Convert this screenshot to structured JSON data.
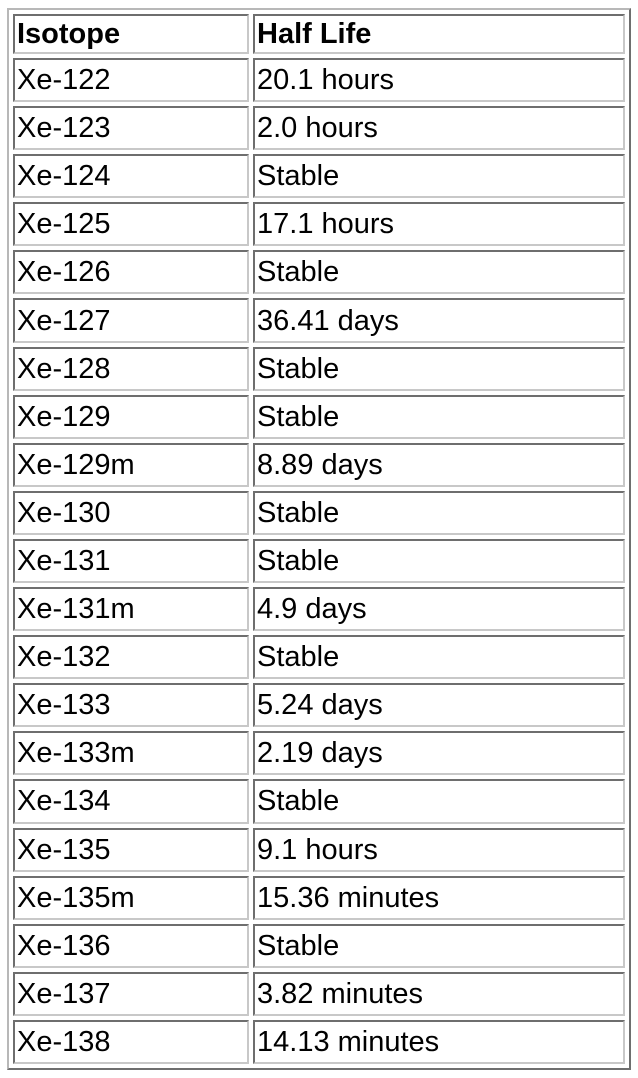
{
  "table": {
    "headers": [
      "Isotope",
      "Half Life"
    ],
    "rows": [
      [
        "Xe-122",
        "20.1 hours"
      ],
      [
        "Xe-123",
        "2.0 hours"
      ],
      [
        "Xe-124",
        "Stable"
      ],
      [
        "Xe-125",
        "17.1 hours"
      ],
      [
        "Xe-126",
        "Stable"
      ],
      [
        "Xe-127",
        "36.41 days"
      ],
      [
        "Xe-128",
        "Stable"
      ],
      [
        "Xe-129",
        "Stable"
      ],
      [
        "Xe-129m",
        "8.89 days"
      ],
      [
        "Xe-130",
        "Stable"
      ],
      [
        "Xe-131",
        "Stable"
      ],
      [
        "Xe-131m",
        "4.9 days"
      ],
      [
        "Xe-132",
        "Stable"
      ],
      [
        "Xe-133",
        "5.24 days"
      ],
      [
        "Xe-133m",
        "2.19 days"
      ],
      [
        "Xe-134",
        "Stable"
      ],
      [
        "Xe-135",
        "9.1 hours"
      ],
      [
        "Xe-135m",
        "15.36 minutes"
      ],
      [
        "Xe-136",
        "Stable"
      ],
      [
        "Xe-137",
        "3.82 minutes"
      ],
      [
        "Xe-138",
        "14.13 minutes"
      ]
    ]
  }
}
